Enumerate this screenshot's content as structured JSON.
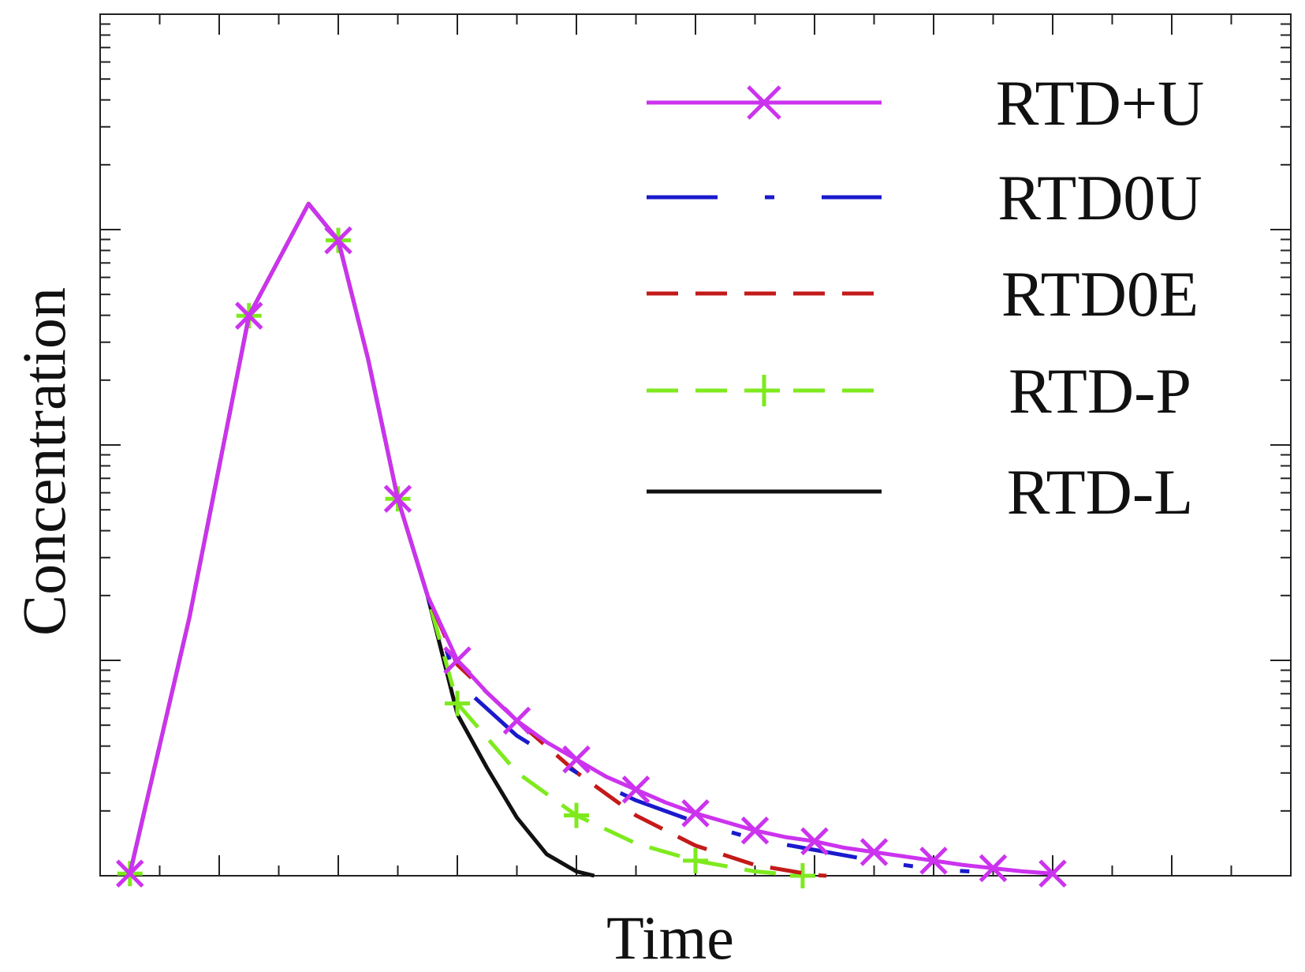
{
  "chart_data": {
    "type": "line",
    "title": "",
    "xlabel": "Time",
    "ylabel": "Concentration",
    "xlim": [
      0,
      10
    ],
    "ylim": [
      0,
      4
    ],
    "y_scale": "log",
    "grid": false,
    "legend_position": "top-right",
    "series": [
      {
        "name": "RTD+U",
        "color": "#cc33ee",
        "style": "solid",
        "marker": "x",
        "x": [
          0.25,
          0.75,
          1.25,
          1.75,
          2.0,
          2.25,
          2.5,
          2.75,
          3.0,
          3.25,
          3.5,
          3.75,
          4.0,
          4.25,
          4.5,
          4.75,
          5.0,
          5.25,
          5.5,
          5.75,
          6.0,
          6.25,
          6.5,
          6.75,
          7.0,
          7.25,
          7.5,
          7.75,
          8.0
        ],
        "y": [
          0.01,
          1.2,
          2.6,
          3.12,
          2.95,
          2.4,
          1.75,
          1.3,
          1.0,
          0.85,
          0.72,
          0.62,
          0.54,
          0.46,
          0.4,
          0.34,
          0.29,
          0.25,
          0.21,
          0.18,
          0.16,
          0.13,
          0.11,
          0.09,
          0.07,
          0.05,
          0.035,
          0.02,
          0.01
        ]
      },
      {
        "name": "RTD0U",
        "color": "#1a1acc",
        "style": "long-dash-dot",
        "marker": "none",
        "x": [
          0.25,
          0.75,
          1.25,
          1.75,
          2.0,
          2.25,
          2.5,
          2.75,
          3.0,
          3.5,
          4.0,
          4.5,
          5.0,
          5.5,
          6.0,
          6.5,
          7.0,
          7.3
        ],
        "y": [
          0.01,
          1.2,
          2.6,
          3.12,
          2.95,
          2.4,
          1.75,
          1.3,
          0.9,
          0.65,
          0.48,
          0.35,
          0.25,
          0.17,
          0.12,
          0.07,
          0.03,
          0.02
        ]
      },
      {
        "name": "RTD0E",
        "color": "#c41a1a",
        "style": "dashed",
        "marker": "none",
        "x": [
          0.25,
          0.75,
          1.25,
          1.75,
          2.0,
          2.25,
          2.5,
          2.75,
          3.0,
          3.5,
          4.0,
          4.5,
          5.0,
          5.5,
          6.0,
          6.1
        ],
        "y": [
          0.01,
          1.2,
          2.6,
          3.12,
          2.95,
          2.4,
          1.75,
          1.3,
          0.98,
          0.72,
          0.48,
          0.28,
          0.14,
          0.05,
          0.003,
          0.0
        ]
      },
      {
        "name": "RTD-P",
        "color": "#7eea1e",
        "style": "dashed",
        "marker": "plus",
        "x": [
          0.25,
          0.75,
          1.25,
          1.75,
          2.0,
          2.25,
          2.5,
          2.75,
          3.0,
          3.5,
          4.0,
          4.5,
          5.0,
          5.5,
          5.9
        ],
        "y": [
          0.01,
          1.2,
          2.6,
          3.12,
          2.95,
          2.4,
          1.75,
          1.3,
          0.8,
          0.48,
          0.28,
          0.15,
          0.07,
          0.02,
          0.0
        ]
      },
      {
        "name": "RTD-L",
        "color": "#111111",
        "style": "solid",
        "marker": "none",
        "x": [
          0.25,
          0.75,
          1.25,
          1.75,
          2.0,
          2.25,
          2.5,
          2.75,
          3.0,
          3.25,
          3.5,
          3.75,
          4.0,
          4.15
        ],
        "y": [
          0.01,
          1.2,
          2.6,
          3.12,
          2.95,
          2.4,
          1.75,
          1.3,
          0.75,
          0.5,
          0.27,
          0.1,
          0.02,
          0.0
        ]
      }
    ]
  }
}
